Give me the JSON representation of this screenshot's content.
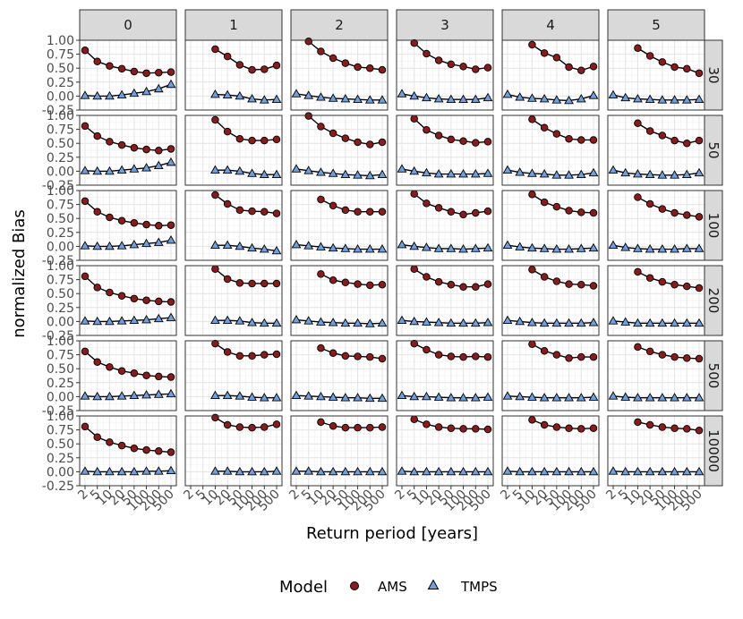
{
  "chart_data": {
    "type": "line",
    "xlabel": "Return period [years]",
    "ylabel": "normalized Bias",
    "ylim": [
      -0.25,
      1.0
    ],
    "yticks": [
      "1.00",
      "0.75",
      "0.50",
      "0.25",
      "0.00",
      "-0.25"
    ],
    "xticks": [
      "2",
      "5",
      "10",
      "20",
      "50",
      "100",
      "200",
      "500"
    ],
    "col_facets": [
      "0",
      "1",
      "2",
      "3",
      "4",
      "5"
    ],
    "row_facets": [
      "30",
      "50",
      "100",
      "200",
      "500",
      "10000"
    ],
    "grid": true,
    "legend": {
      "title": "Model",
      "position": "bottom",
      "entries": [
        {
          "name": "AMS",
          "shape": "circle",
          "color": "#8B1A1A"
        },
        {
          "name": "TMPS",
          "shape": "triangle",
          "color": "#6E9FE0"
        }
      ]
    },
    "panels": [
      [
        {
          "AMS": [
            0.82,
            0.62,
            0.54,
            0.49,
            0.44,
            0.41,
            0.42,
            0.43
          ],
          "TMPS": [
            0.01,
            0.0,
            0.0,
            0.02,
            0.05,
            0.08,
            0.13,
            0.21
          ]
        },
        {
          "AMS": [
            0.81,
            0.63,
            0.53,
            0.47,
            0.42,
            0.39,
            0.37,
            0.4
          ],
          "TMPS": [
            0.01,
            0.0,
            0.0,
            0.02,
            0.04,
            0.06,
            0.1,
            0.16
          ]
        },
        {
          "AMS": [
            0.81,
            0.62,
            0.52,
            0.46,
            0.42,
            0.39,
            0.37,
            0.38
          ],
          "TMPS": [
            0.01,
            0.0,
            0.0,
            0.01,
            0.03,
            0.05,
            0.07,
            0.11
          ]
        },
        {
          "AMS": [
            0.81,
            0.61,
            0.52,
            0.46,
            0.41,
            0.38,
            0.36,
            0.35
          ],
          "TMPS": [
            0.01,
            0.0,
            0.0,
            0.01,
            0.02,
            0.03,
            0.05,
            0.07
          ]
        },
        {
          "AMS": [
            0.81,
            0.62,
            0.53,
            0.46,
            0.42,
            0.38,
            0.36,
            0.35
          ],
          "TMPS": [
            0.01,
            0.0,
            0.0,
            0.01,
            0.02,
            0.03,
            0.04,
            0.05
          ]
        },
        {
          "AMS": [
            0.81,
            0.62,
            0.53,
            0.47,
            0.42,
            0.39,
            0.37,
            0.35
          ],
          "TMPS": [
            0.01,
            0.0,
            0.0,
            0.0,
            0.0,
            0.01,
            0.01,
            0.02
          ]
        }
      ],
      [
        {
          "AMS": [
            null,
            null,
            0.84,
            0.71,
            0.56,
            0.47,
            0.48,
            0.55
          ],
          "TMPS": [
            null,
            null,
            0.03,
            0.02,
            0.0,
            -0.05,
            -0.07,
            -0.06
          ]
        },
        {
          "AMS": [
            null,
            null,
            0.92,
            0.71,
            0.58,
            0.55,
            0.55,
            0.57
          ],
          "TMPS": [
            null,
            null,
            0.02,
            0.02,
            0.0,
            -0.04,
            -0.06,
            -0.06
          ]
        },
        {
          "AMS": [
            null,
            null,
            0.92,
            0.76,
            0.65,
            0.63,
            0.62,
            0.59
          ],
          "TMPS": [
            null,
            null,
            0.02,
            0.02,
            0.0,
            -0.03,
            -0.05,
            -0.08
          ]
        },
        {
          "AMS": [
            null,
            null,
            0.94,
            0.76,
            0.69,
            0.68,
            0.68,
            0.68
          ],
          "TMPS": [
            null,
            null,
            0.02,
            0.02,
            0.01,
            -0.02,
            -0.03,
            -0.03
          ]
        },
        {
          "AMS": [
            null,
            null,
            0.95,
            0.8,
            0.73,
            0.73,
            0.75,
            0.76
          ],
          "TMPS": [
            null,
            null,
            0.02,
            0.02,
            0.01,
            -0.01,
            -0.02,
            -0.02
          ]
        },
        {
          "AMS": [
            null,
            null,
            0.97,
            0.84,
            0.8,
            0.79,
            0.8,
            0.85
          ],
          "TMPS": [
            null,
            null,
            0.01,
            0.01,
            0.0,
            0.0,
            0.0,
            0.01
          ]
        }
      ],
      [
        {
          "AMS": [
            null,
            0.98,
            0.8,
            0.68,
            0.59,
            0.52,
            0.5,
            0.47
          ],
          "TMPS": [
            0.04,
            0.01,
            -0.02,
            -0.04,
            -0.05,
            -0.06,
            -0.07,
            -0.07
          ]
        },
        {
          "AMS": [
            null,
            0.99,
            0.8,
            0.68,
            0.59,
            0.52,
            0.48,
            0.52
          ],
          "TMPS": [
            0.04,
            0.01,
            -0.02,
            -0.04,
            -0.06,
            -0.07,
            -0.08,
            -0.06
          ]
        },
        {
          "AMS": [
            null,
            null,
            0.84,
            0.73,
            0.65,
            0.62,
            0.62,
            0.62
          ],
          "TMPS": [
            0.03,
            0.01,
            -0.01,
            -0.03,
            -0.04,
            -0.05,
            -0.05,
            -0.05
          ]
        },
        {
          "AMS": [
            null,
            null,
            0.85,
            0.74,
            0.7,
            0.67,
            0.65,
            0.66
          ],
          "TMPS": [
            0.03,
            0.01,
            -0.01,
            -0.02,
            -0.03,
            -0.03,
            -0.04,
            -0.03
          ]
        },
        {
          "AMS": [
            null,
            null,
            0.87,
            0.78,
            0.73,
            0.72,
            0.71,
            0.68
          ],
          "TMPS": [
            0.02,
            0.01,
            0.0,
            -0.01,
            -0.02,
            -0.02,
            -0.03,
            -0.03
          ]
        },
        {
          "AMS": [
            null,
            null,
            0.89,
            0.82,
            0.79,
            0.79,
            0.79,
            0.8
          ],
          "TMPS": [
            0.01,
            0.01,
            0.0,
            0.0,
            0.0,
            0.0,
            0.0,
            0.0
          ]
        }
      ],
      [
        {
          "AMS": [
            null,
            0.95,
            0.76,
            0.64,
            0.57,
            0.53,
            0.48,
            0.51
          ],
          "TMPS": [
            0.04,
            0.0,
            -0.03,
            -0.05,
            -0.06,
            -0.06,
            -0.06,
            -0.03
          ]
        },
        {
          "AMS": [
            null,
            0.94,
            0.74,
            0.64,
            0.57,
            0.54,
            0.51,
            0.53
          ],
          "TMPS": [
            0.04,
            0.0,
            -0.03,
            -0.05,
            -0.05,
            -0.05,
            -0.05,
            -0.04
          ]
        },
        {
          "AMS": [
            null,
            0.94,
            0.77,
            0.69,
            0.62,
            0.57,
            0.6,
            0.63
          ],
          "TMPS": [
            0.03,
            0.0,
            -0.02,
            -0.04,
            -0.04,
            -0.05,
            -0.04,
            -0.03
          ]
        },
        {
          "AMS": [
            null,
            0.94,
            0.8,
            0.71,
            0.66,
            0.62,
            0.62,
            0.67
          ],
          "TMPS": [
            0.02,
            0.0,
            -0.01,
            -0.02,
            -0.03,
            -0.03,
            -0.03,
            -0.02
          ]
        },
        {
          "AMS": [
            null,
            0.95,
            0.84,
            0.75,
            0.72,
            0.71,
            0.72,
            0.71
          ],
          "TMPS": [
            0.02,
            0.0,
            0.0,
            -0.01,
            -0.02,
            -0.02,
            -0.02,
            -0.01
          ]
        },
        {
          "AMS": [
            null,
            0.94,
            0.85,
            0.8,
            0.78,
            0.77,
            0.77,
            0.76
          ],
          "TMPS": [
            0.01,
            0.0,
            0.0,
            0.0,
            0.0,
            0.0,
            0.0,
            0.0
          ]
        }
      ],
      [
        {
          "AMS": [
            null,
            null,
            0.92,
            0.77,
            0.69,
            0.52,
            0.46,
            0.53
          ],
          "TMPS": [
            0.03,
            -0.02,
            -0.04,
            -0.05,
            -0.07,
            -0.08,
            -0.05,
            0.01
          ]
        },
        {
          "AMS": [
            null,
            null,
            0.93,
            0.78,
            0.67,
            0.58,
            0.56,
            0.56
          ],
          "TMPS": [
            0.02,
            -0.02,
            -0.04,
            -0.05,
            -0.07,
            -0.07,
            -0.06,
            -0.03
          ]
        },
        {
          "AMS": [
            null,
            null,
            0.93,
            0.79,
            0.71,
            0.64,
            0.61,
            0.6
          ],
          "TMPS": [
            0.02,
            -0.01,
            -0.03,
            -0.04,
            -0.05,
            -0.05,
            -0.04,
            -0.03
          ]
        },
        {
          "AMS": [
            null,
            null,
            0.93,
            0.8,
            0.72,
            0.67,
            0.66,
            0.64
          ],
          "TMPS": [
            0.02,
            0.0,
            -0.02,
            -0.03,
            -0.03,
            -0.03,
            -0.03,
            -0.02
          ]
        },
        {
          "AMS": [
            null,
            null,
            0.94,
            0.82,
            0.75,
            0.69,
            0.71,
            0.71
          ],
          "TMPS": [
            0.01,
            0.0,
            -0.01,
            -0.02,
            -0.02,
            -0.02,
            -0.02,
            -0.01
          ]
        },
        {
          "AMS": [
            null,
            null,
            0.93,
            0.84,
            0.8,
            0.78,
            0.77,
            0.78
          ],
          "TMPS": [
            0.01,
            0.0,
            0.0,
            0.0,
            0.0,
            0.0,
            0.0,
            0.0
          ]
        }
      ],
      [
        {
          "AMS": [
            null,
            null,
            0.86,
            0.72,
            0.61,
            0.52,
            0.49,
            0.41
          ],
          "TMPS": [
            0.02,
            -0.03,
            -0.05,
            -0.06,
            -0.07,
            -0.07,
            -0.07,
            -0.06
          ]
        },
        {
          "AMS": [
            null,
            null,
            0.86,
            0.72,
            0.64,
            0.55,
            0.5,
            0.55
          ],
          "TMPS": [
            0.02,
            -0.03,
            -0.05,
            -0.06,
            -0.07,
            -0.07,
            -0.06,
            -0.03
          ]
        },
        {
          "AMS": [
            null,
            null,
            0.88,
            0.76,
            0.67,
            0.6,
            0.56,
            0.53
          ],
          "TMPS": [
            0.02,
            -0.02,
            -0.04,
            -0.05,
            -0.05,
            -0.05,
            -0.04,
            -0.04
          ]
        },
        {
          "AMS": [
            null,
            null,
            0.89,
            0.78,
            0.71,
            0.66,
            0.63,
            0.6
          ],
          "TMPS": [
            0.01,
            -0.01,
            -0.03,
            -0.03,
            -0.03,
            -0.03,
            -0.03,
            -0.03
          ]
        },
        {
          "AMS": [
            null,
            null,
            0.89,
            0.81,
            0.75,
            0.71,
            0.69,
            0.68
          ],
          "TMPS": [
            0.01,
            -0.01,
            -0.02,
            -0.02,
            -0.02,
            -0.02,
            -0.02,
            -0.02
          ]
        },
        {
          "AMS": [
            null,
            null,
            0.89,
            0.84,
            0.8,
            0.78,
            0.77,
            0.74
          ],
          "TMPS": [
            0.01,
            0.0,
            0.0,
            0.0,
            0.0,
            0.0,
            0.0,
            0.0
          ]
        }
      ]
    ]
  }
}
